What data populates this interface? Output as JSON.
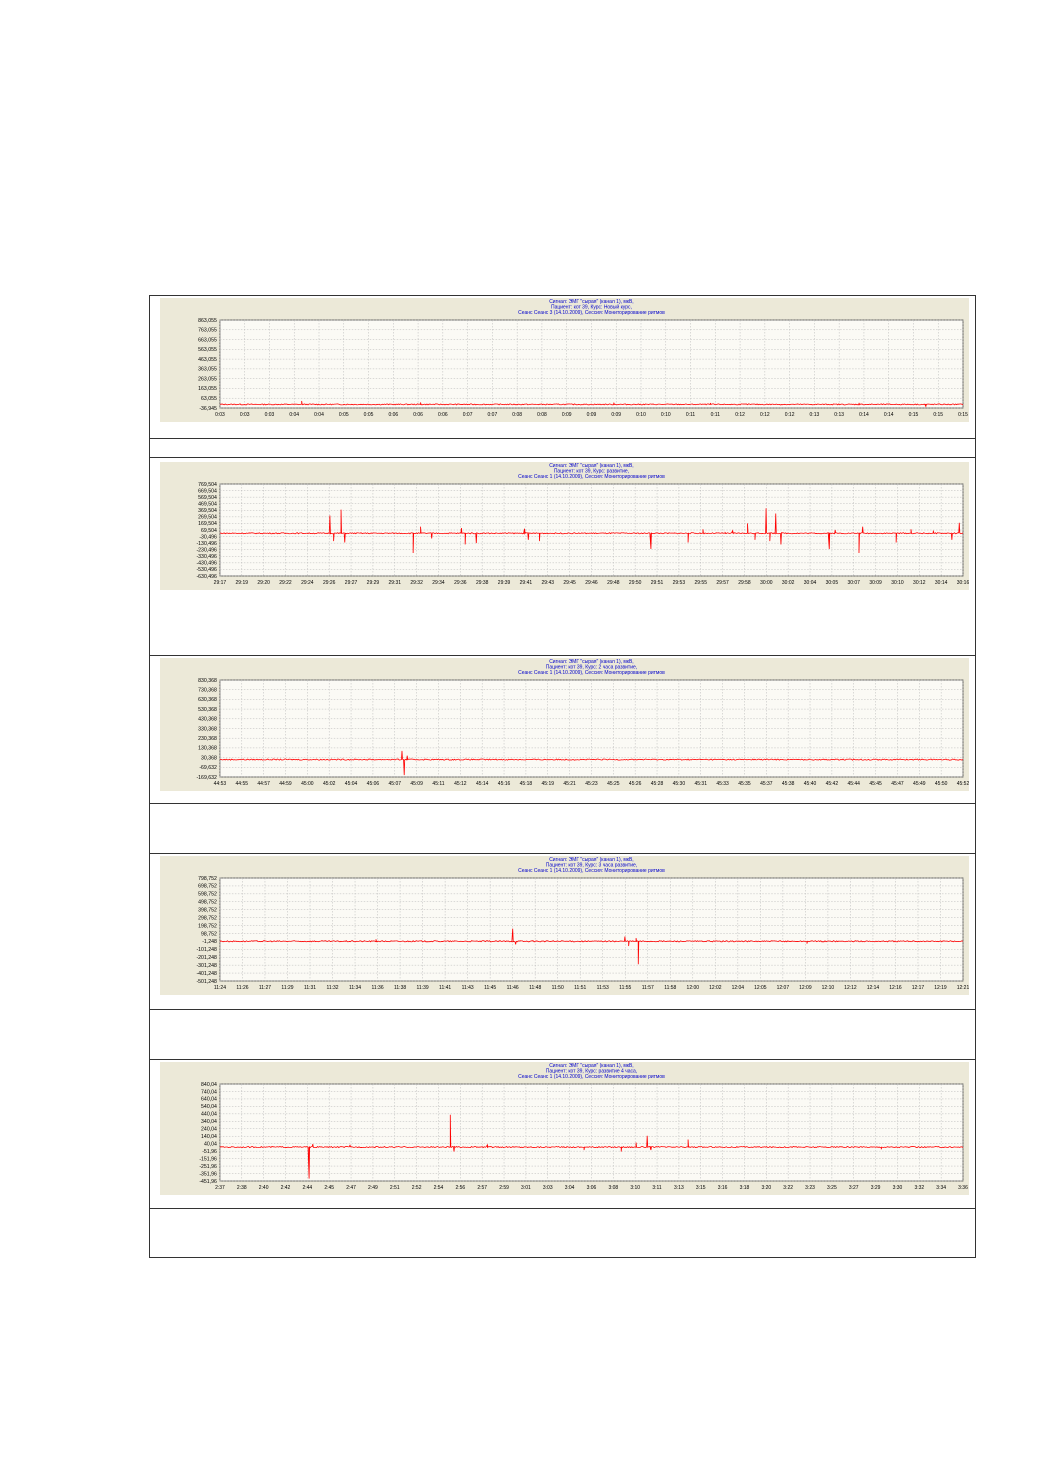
{
  "chart_data": [
    {
      "type": "line",
      "title": "Сигнал: ЭМГ \"сырая\" (канал 1), мкВ,",
      "subtitle": [
        "Пациент: кот 39, Курс: Новый курс,",
        "Сеанс Сеанс 3 (14.10.2009), Сессия:   Мониторирование ритмов"
      ],
      "color": "#ff0000",
      "grid": true,
      "y_ticks": [
        "863,055",
        "763,055",
        "663,055",
        "563,055",
        "463,055",
        "363,055",
        "263,055",
        "163,055",
        "63,055",
        "-36,945"
      ],
      "ylim": [
        -36.945,
        863.055
      ],
      "x_ticks": [
        "0:03",
        "0:03",
        "0:03",
        "0:04",
        "0:04",
        "0:05",
        "0:05",
        "0:06",
        "0:06",
        "0:06",
        "0:07",
        "0:07",
        "0:08",
        "0:08",
        "0:09",
        "0:09",
        "0:09",
        "0:10",
        "0:10",
        "0:11",
        "0:11",
        "0:12",
        "0:12",
        "0:12",
        "0:13",
        "0:13",
        "0:14",
        "0:14",
        "0:15",
        "0:15",
        "0:15"
      ],
      "series": [
        {
          "baseline": 0,
          "spikes": [
            {
              "x": 0.11,
              "v": 35
            },
            {
              "x": 0.27,
              "v": 20
            },
            {
              "x": 0.53,
              "v": 18
            },
            {
              "x": 0.66,
              "v": 14
            },
            {
              "x": 0.86,
              "v": 16
            },
            {
              "x": 0.95,
              "v": -20
            }
          ]
        }
      ]
    },
    {
      "type": "line",
      "title": "Сигнал: ЭМГ \"сырая\" (канал 1), мкВ,",
      "subtitle": [
        "Пациент: кот 39, Курс: развитие,",
        "Сеанс Сеанс 1 (14.10.2009), Сессия:   Мониторирование ритмов"
      ],
      "color": "#ff0000",
      "grid": true,
      "y_ticks": [
        "769,504",
        "669,504",
        "569,504",
        "469,504",
        "369,504",
        "269,504",
        "169,504",
        "69,504",
        "-30,496",
        "-130,496",
        "-230,496",
        "-330,496",
        "-430,496",
        "-530,496",
        "-630,496"
      ],
      "ylim": [
        -630.496,
        769.504
      ],
      "x_ticks": [
        "29:17",
        "29:19",
        "29:20",
        "29:22",
        "29:24",
        "29:26",
        "29:27",
        "29:29",
        "29:31",
        "29:32",
        "29:34",
        "29:36",
        "29:38",
        "29:39",
        "29:41",
        "29:43",
        "29:45",
        "29:46",
        "29:48",
        "29:50",
        "29:51",
        "29:53",
        "29:55",
        "29:57",
        "29:58",
        "30:00",
        "30:02",
        "30:04",
        "30:05",
        "30:07",
        "30:09",
        "30:10",
        "30:12",
        "30:14",
        "30:16"
      ],
      "series": [
        {
          "baseline": 20,
          "spikes": [
            {
              "x": 0.148,
              "v": 290
            },
            {
              "x": 0.153,
              "v": -100
            },
            {
              "x": 0.163,
              "v": 380
            },
            {
              "x": 0.168,
              "v": -120
            },
            {
              "x": 0.26,
              "v": -280
            },
            {
              "x": 0.27,
              "v": 120
            },
            {
              "x": 0.285,
              "v": -60
            },
            {
              "x": 0.325,
              "v": 100
            },
            {
              "x": 0.33,
              "v": -150
            },
            {
              "x": 0.345,
              "v": -130
            },
            {
              "x": 0.41,
              "v": 90
            },
            {
              "x": 0.415,
              "v": -80
            },
            {
              "x": 0.43,
              "v": -100
            },
            {
              "x": 0.58,
              "v": -220
            },
            {
              "x": 0.63,
              "v": -120
            },
            {
              "x": 0.65,
              "v": 80
            },
            {
              "x": 0.68,
              "v": 30
            },
            {
              "x": 0.69,
              "v": 60
            },
            {
              "x": 0.71,
              "v": 170
            },
            {
              "x": 0.72,
              "v": -80
            },
            {
              "x": 0.735,
              "v": 400
            },
            {
              "x": 0.74,
              "v": -100
            },
            {
              "x": 0.748,
              "v": 320
            },
            {
              "x": 0.755,
              "v": -150
            },
            {
              "x": 0.82,
              "v": -220
            },
            {
              "x": 0.828,
              "v": 70
            },
            {
              "x": 0.86,
              "v": -280
            },
            {
              "x": 0.865,
              "v": 120
            },
            {
              "x": 0.91,
              "v": -120
            },
            {
              "x": 0.93,
              "v": 80
            },
            {
              "x": 0.96,
              "v": 60
            },
            {
              "x": 0.985,
              "v": -80
            },
            {
              "x": 0.995,
              "v": 180
            }
          ]
        }
      ]
    },
    {
      "type": "line",
      "title": "Сигнал: ЭМГ \"сырая\" (канал 1), мкВ,",
      "subtitle": [
        "Пациент: кот 39, Курс: 2 часа развитие,",
        "Сеанс Сеанс 1 (14.10.2009), Сессия:   Мониторирование ритмов"
      ],
      "color": "#ff0000",
      "grid": true,
      "y_ticks": [
        "830,368",
        "730,368",
        "630,368",
        "530,368",
        "430,368",
        "330,368",
        "230,368",
        "130,368",
        "30,368",
        "-69,632",
        "-169,632"
      ],
      "ylim": [
        -169.632,
        830.368
      ],
      "x_ticks": [
        "44:53",
        "44:55",
        "44:57",
        "44:59",
        "45:00",
        "45:02",
        "45:04",
        "45:06",
        "45:07",
        "45:09",
        "45:11",
        "45:12",
        "45:14",
        "45:16",
        "45:18",
        "45:19",
        "45:21",
        "45:23",
        "45:25",
        "45:26",
        "45:28",
        "45:30",
        "45:31",
        "45:33",
        "45:35",
        "45:37",
        "45:38",
        "45:40",
        "45:42",
        "45:44",
        "45:45",
        "45:47",
        "45:49",
        "45:50",
        "45:52"
      ],
      "series": [
        {
          "baseline": 10,
          "spikes": [
            {
              "x": 0.245,
              "v": 100
            },
            {
              "x": 0.248,
              "v": -150
            },
            {
              "x": 0.252,
              "v": 50
            }
          ]
        }
      ]
    },
    {
      "type": "line",
      "title": "Сигнал: ЭМГ \"сырая\" (канал 1), мкВ,",
      "subtitle": [
        "Пациент: кот 39, Курс: 3 часа развитие,",
        "Сеанс Сеанс 1 (14.10.2009), Сессия:   Мониторирование ритмов"
      ],
      "color": "#ff0000",
      "grid": true,
      "y_ticks": [
        "798,752",
        "698,752",
        "598,752",
        "498,752",
        "398,752",
        "298,752",
        "198,752",
        "98,752",
        "-1,248",
        "-101,248",
        "-201,248",
        "-301,248",
        "-401,248",
        "-501,248"
      ],
      "ylim": [
        -501.248,
        798.752
      ],
      "x_ticks": [
        "11:24",
        "11:26",
        "11:27",
        "11:29",
        "11:31",
        "11:32",
        "11:34",
        "11:36",
        "11:38",
        "11:39",
        "11:41",
        "11:43",
        "11:45",
        "11:46",
        "11:48",
        "11:50",
        "11:51",
        "11:53",
        "11:55",
        "11:57",
        "11:58",
        "12:00",
        "12:02",
        "12:04",
        "12:05",
        "12:07",
        "12:09",
        "12:10",
        "12:12",
        "12:14",
        "12:16",
        "12:17",
        "12:19",
        "12:21"
      ],
      "series": [
        {
          "baseline": 0,
          "spikes": [
            {
              "x": 0.21,
              "v": 25
            },
            {
              "x": 0.394,
              "v": 160
            },
            {
              "x": 0.398,
              "v": -40
            },
            {
              "x": 0.545,
              "v": 60
            },
            {
              "x": 0.55,
              "v": -60
            },
            {
              "x": 0.56,
              "v": 40
            },
            {
              "x": 0.563,
              "v": -290
            },
            {
              "x": 0.79,
              "v": -30
            }
          ]
        }
      ]
    },
    {
      "type": "line",
      "title": "Сигнал: ЭМГ \"сырая\" (канал 1), мкВ,",
      "subtitle": [
        "Пациент: кот 39, Курс: развитие 4 часа,",
        "Сеанс Сеанс 1 (14.10.2009), Сессия:   Мониторирование ритмов"
      ],
      "color": "#ff0000",
      "grid": true,
      "y_ticks": [
        "840,04",
        "740,04",
        "640,04",
        "540,04",
        "440,04",
        "340,04",
        "240,04",
        "140,04",
        "40,04",
        "-51,96",
        "-151,96",
        "-251,96",
        "-351,96",
        "-451,96"
      ],
      "ylim": [
        -451.96,
        840.04
      ],
      "x_ticks": [
        "2:37",
        "2:38",
        "2:40",
        "2:42",
        "2:44",
        "2:45",
        "2:47",
        "2:49",
        "2:51",
        "2:52",
        "2:54",
        "2:56",
        "2:57",
        "2:59",
        "3:01",
        "3:03",
        "3:04",
        "3:06",
        "3:08",
        "3:10",
        "3:11",
        "3:13",
        "3:15",
        "3:16",
        "3:18",
        "3:20",
        "3:22",
        "3:23",
        "3:25",
        "3:27",
        "3:29",
        "3:30",
        "3:32",
        "3:34",
        "3:36"
      ],
      "series": [
        {
          "baseline": 0,
          "spikes": [
            {
              "x": 0.12,
              "v": -420
            },
            {
              "x": 0.125,
              "v": 40
            },
            {
              "x": 0.175,
              "v": 30
            },
            {
              "x": 0.31,
              "v": 430
            },
            {
              "x": 0.315,
              "v": -60
            },
            {
              "x": 0.36,
              "v": 30
            },
            {
              "x": 0.49,
              "v": -40
            },
            {
              "x": 0.54,
              "v": -60
            },
            {
              "x": 0.56,
              "v": 60
            },
            {
              "x": 0.575,
              "v": 150
            },
            {
              "x": 0.58,
              "v": -40
            },
            {
              "x": 0.63,
              "v": 100
            },
            {
              "x": 0.89,
              "v": -30
            }
          ]
        }
      ]
    }
  ]
}
